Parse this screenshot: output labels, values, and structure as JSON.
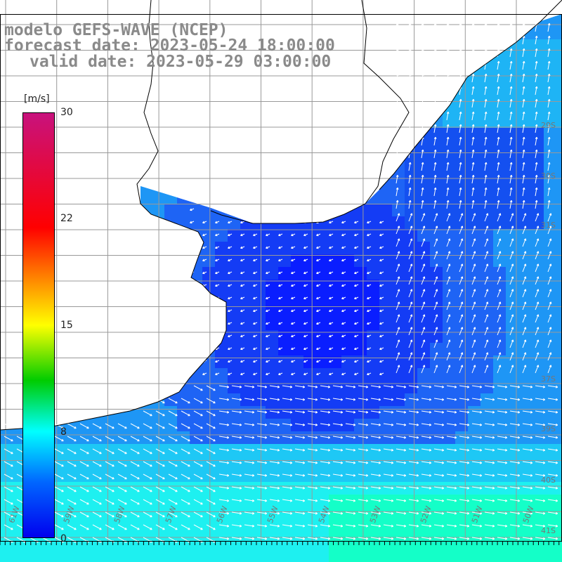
{
  "title": {
    "model": "modelo GEFS-WAVE (NCEP)",
    "forecast": "forecast date: 2023-05-24 18:00:00",
    "valid": "valid date: 2023-05-29 03:00:00"
  },
  "colorbar": {
    "unit": "[m/s]",
    "ticks": [
      "30",
      "22",
      "15",
      "8",
      "0"
    ],
    "tick_values": [
      30,
      22,
      15,
      8,
      0
    ],
    "colors": [
      "#c8127d",
      "#ff0000",
      "#ffff00",
      "#00cc00",
      "#00ffff",
      "#0066ff",
      "#0000ee"
    ]
  },
  "map": {
    "longitude_labels": [
      "61W",
      "59W",
      "58W",
      "57W",
      "56W",
      "55W",
      "54W",
      "53W",
      "52W",
      "51W",
      "50W"
    ],
    "latitude_labels": [
      "29S",
      "30S",
      "31S",
      "37S",
      "39S",
      "40S",
      "41S"
    ],
    "land_color": "#ffffff",
    "grid_color": "#999999",
    "arrow_color": "#ffffff"
  }
}
